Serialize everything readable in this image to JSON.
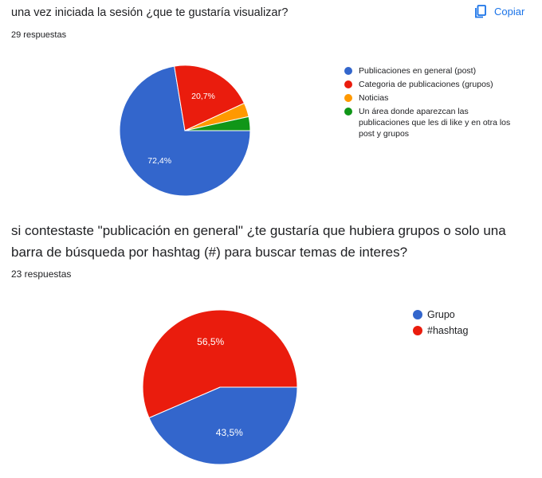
{
  "copy_button": {
    "label": "Copiar",
    "icon": "copy-icon"
  },
  "charts_text": [
    {
      "title": "una vez iniciada la sesión ¿que te gustaría visualizar?",
      "responses": "29 respuestas"
    },
    {
      "title": "si contestaste \"publicación en general\" ¿te gustaría que hubiera grupos o solo una barra de búsqueda por hashtag (#) para buscar temas de interes?",
      "responses": "23 respuestas"
    }
  ],
  "chart_data": [
    {
      "type": "pie",
      "title": "una vez iniciada la sesión ¿que te gustaría visualizar?",
      "total_responses": 29,
      "legend_position": "right",
      "slices": [
        {
          "label": "Publicaciones en general (post)",
          "value": 72.4,
          "display": "72,4%",
          "color": "#3366cc"
        },
        {
          "label": "Categoria de publicaciones (grupos)",
          "value": 20.7,
          "display": "20,7%",
          "color": "#ea1c0d"
        },
        {
          "label": "Noticias",
          "value": 3.45,
          "display": "",
          "color": "#ff9900"
        },
        {
          "label": "Un área donde aparezcan las publicaciones que les di like y en otra los post y grupos",
          "value": 3.45,
          "display": "",
          "color": "#109618"
        }
      ]
    },
    {
      "type": "pie",
      "title": "si contestaste \"publicación en general\" ¿te gustaría que hubiera grupos o solo una barra de búsqueda por hashtag (#) para buscar temas de interes?",
      "total_responses": 23,
      "legend_position": "right",
      "slices": [
        {
          "label": "Grupo",
          "value": 43.5,
          "display": "43,5%",
          "color": "#3366cc"
        },
        {
          "label": "#hashtag",
          "value": 56.5,
          "display": "56,5%",
          "color": "#ea1c0d"
        }
      ]
    }
  ]
}
